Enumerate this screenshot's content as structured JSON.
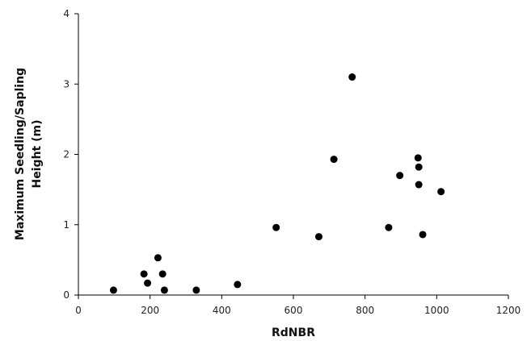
{
  "chart_data": {
    "type": "scatter",
    "title": "",
    "xlabel": "RdNBR",
    "ylabel_lines": [
      "Maximum Seedling/Sapling",
      "Height (m)"
    ],
    "xlim": [
      0,
      1200
    ],
    "ylim": [
      0,
      4
    ],
    "x_ticks": [
      "0",
      "200",
      "400",
      "600",
      "800",
      "1000",
      "1200"
    ],
    "y_ticks": [
      "0",
      "1",
      "2",
      "3",
      "4"
    ],
    "grid": false,
    "legend": "none",
    "marker_color": "#000000",
    "series": [
      {
        "points": [
          {
            "x": 98,
            "y": 0.07
          },
          {
            "x": 183,
            "y": 0.3
          },
          {
            "x": 193,
            "y": 0.17
          },
          {
            "x": 222,
            "y": 0.53
          },
          {
            "x": 235,
            "y": 0.3
          },
          {
            "x": 240,
            "y": 0.07
          },
          {
            "x": 329,
            "y": 0.07
          },
          {
            "x": 444,
            "y": 0.15
          },
          {
            "x": 552,
            "y": 0.96
          },
          {
            "x": 671,
            "y": 0.83
          },
          {
            "x": 713,
            "y": 1.93
          },
          {
            "x": 764,
            "y": 3.1
          },
          {
            "x": 866,
            "y": 0.96
          },
          {
            "x": 897,
            "y": 1.7
          },
          {
            "x": 948,
            "y": 1.95
          },
          {
            "x": 950,
            "y": 1.82
          },
          {
            "x": 950,
            "y": 1.57
          },
          {
            "x": 961,
            "y": 0.86
          },
          {
            "x": 1012,
            "y": 1.47
          }
        ]
      }
    ]
  }
}
